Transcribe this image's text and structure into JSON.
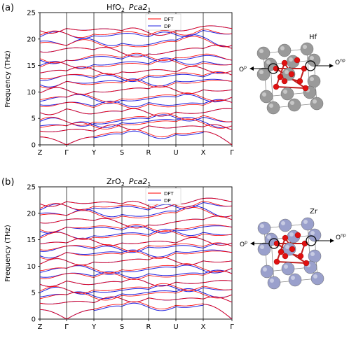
{
  "chart_data": [
    {
      "type": "line",
      "panel_label": "(a)",
      "title": {
        "formula": "HfO",
        "formula_sub": "2",
        "space_group": "Pca",
        "space_group_sub": "1",
        "space_group_num": "2"
      },
      "ylabel": "Frequency (THz)",
      "ylim": [
        0,
        25
      ],
      "yticks": [
        "0",
        "5",
        "10",
        "15",
        "20",
        "25"
      ],
      "xticks": [
        "Z",
        "Γ",
        "Y",
        "S",
        "R",
        "U",
        "X",
        "Γ"
      ],
      "legend": [
        "DFT",
        "DP"
      ],
      "series_colors": {
        "DFT": "#ff0000",
        "DP": "#2020e0"
      },
      "bands_at_high_symmetry_points": {
        "x": [
          "Z",
          "Γ",
          "Y",
          "S",
          "R",
          "U",
          "X",
          "Γ"
        ],
        "frequencies": [
          [
            1.5,
            0,
            1.5,
            2.2,
            2.0,
            2.1,
            2.5,
            0
          ],
          [
            2.6,
            2.8,
            2.6,
            3.4,
            3.6,
            3.3,
            3.4,
            2.8
          ],
          [
            3.4,
            3.6,
            3.6,
            4.0,
            4.3,
            4.5,
            4.2,
            3.6
          ],
          [
            4.6,
            4.4,
            4.2,
            4.8,
            5.1,
            5.3,
            5.4,
            4.4
          ],
          [
            6.1,
            6.8,
            5.9,
            6.3,
            6.0,
            6.2,
            6.1,
            6.8
          ],
          [
            7.4,
            8.0,
            7.2,
            7.6,
            7.8,
            7.4,
            7.6,
            8.0
          ],
          [
            8.4,
            9.0,
            8.8,
            8.6,
            8.9,
            9.2,
            8.8,
            9.0
          ],
          [
            9.8,
            10.4,
            10.1,
            10.4,
            10.6,
            10.3,
            10.4,
            10.4
          ],
          [
            11.2,
            12.0,
            11.6,
            11.8,
            11.4,
            11.9,
            12.1,
            12.0
          ],
          [
            12.4,
            13.2,
            12.8,
            12.6,
            13.1,
            13.4,
            13.0,
            13.2
          ],
          [
            13.6,
            14.0,
            14.2,
            13.8,
            14.1,
            13.8,
            14.4,
            14.0
          ],
          [
            14.8,
            15.2,
            15.0,
            15.4,
            15.2,
            15.8,
            15.6,
            15.2
          ],
          [
            16.2,
            16.0,
            16.8,
            16.4,
            16.6,
            16.4,
            17.0,
            16.0
          ],
          [
            17.6,
            18.2,
            18.0,
            17.4,
            17.2,
            17.8,
            18.2,
            18.2
          ],
          [
            19.4,
            18.8,
            19.6,
            19.0,
            18.8,
            19.6,
            20.2,
            18.8
          ],
          [
            20.6,
            21.0,
            20.8,
            21.2,
            20.6,
            21.0,
            21.8,
            21.0
          ],
          [
            21.6,
            22.0,
            21.8,
            21.6,
            21.2,
            21.6,
            22.4,
            22.0
          ]
        ]
      }
    },
    {
      "type": "line",
      "panel_label": "(b)",
      "title": {
        "formula": "ZrO",
        "formula_sub": "2",
        "space_group": "Pca",
        "space_group_sub": "1",
        "space_group_num": "2"
      },
      "ylabel": "Frequency (THz)",
      "ylim": [
        0,
        25
      ],
      "yticks": [
        "0",
        "5",
        "10",
        "15",
        "20",
        "25"
      ],
      "xticks": [
        "Z",
        "Γ",
        "Y",
        "S",
        "R",
        "U",
        "X",
        "Γ"
      ],
      "legend": [
        "DFT",
        "DP"
      ],
      "series_colors": {
        "DFT": "#ff0000",
        "DP": "#2020e0"
      },
      "bands_at_high_symmetry_points": {
        "x": [
          "Z",
          "Γ",
          "Y",
          "S",
          "R",
          "U",
          "X",
          "Γ"
        ],
        "frequencies": [
          [
            1.8,
            0,
            1.8,
            2.6,
            2.4,
            2.5,
            2.8,
            0
          ],
          [
            3.0,
            3.2,
            3.1,
            3.8,
            4.0,
            3.7,
            3.8,
            3.2
          ],
          [
            4.0,
            4.6,
            4.2,
            4.6,
            4.9,
            5.0,
            4.8,
            4.6
          ],
          [
            5.2,
            5.6,
            5.4,
            5.6,
            5.8,
            6.0,
            6.1,
            5.6
          ],
          [
            6.6,
            7.2,
            6.6,
            7.0,
            6.8,
            7.0,
            6.9,
            7.2
          ],
          [
            7.8,
            8.6,
            8.0,
            8.2,
            8.4,
            8.2,
            8.4,
            8.6
          ],
          [
            9.0,
            9.6,
            9.4,
            9.2,
            9.6,
            9.9,
            9.4,
            9.6
          ],
          [
            10.4,
            11.0,
            10.8,
            11.0,
            11.2,
            10.9,
            11.0,
            11.0
          ],
          [
            11.8,
            12.6,
            12.2,
            12.4,
            12.0,
            12.6,
            12.8,
            12.6
          ],
          [
            13.0,
            13.8,
            13.4,
            13.2,
            13.8,
            14.0,
            13.6,
            13.8
          ],
          [
            14.2,
            14.4,
            14.8,
            14.4,
            14.6,
            14.4,
            15.0,
            14.4
          ],
          [
            15.4,
            16.0,
            15.6,
            16.0,
            15.8,
            16.4,
            16.2,
            16.0
          ],
          [
            16.8,
            17.4,
            17.4,
            17.0,
            17.2,
            17.0,
            17.6,
            17.4
          ],
          [
            18.2,
            18.8,
            18.6,
            18.0,
            17.8,
            18.4,
            18.8,
            18.8
          ],
          [
            19.8,
            19.6,
            20.2,
            19.6,
            19.4,
            20.2,
            20.8,
            19.6
          ],
          [
            20.8,
            21.4,
            21.2,
            21.4,
            20.8,
            21.4,
            22.2,
            21.4
          ],
          [
            21.8,
            22.2,
            22.0,
            21.8,
            21.4,
            21.8,
            22.8,
            22.2
          ]
        ]
      }
    }
  ],
  "structures": [
    {
      "element_label": "Hf",
      "site_labels": [
        "O",
        "O"
      ],
      "site_superscripts": [
        "p",
        "np"
      ],
      "metal_color": "#9a9a9a",
      "oxygen_color": "#e01010"
    },
    {
      "element_label": "Zr",
      "site_labels": [
        "O",
        "O"
      ],
      "site_superscripts": [
        "p",
        "np"
      ],
      "metal_color": "#9aa0cc",
      "oxygen_color": "#e01010"
    }
  ]
}
